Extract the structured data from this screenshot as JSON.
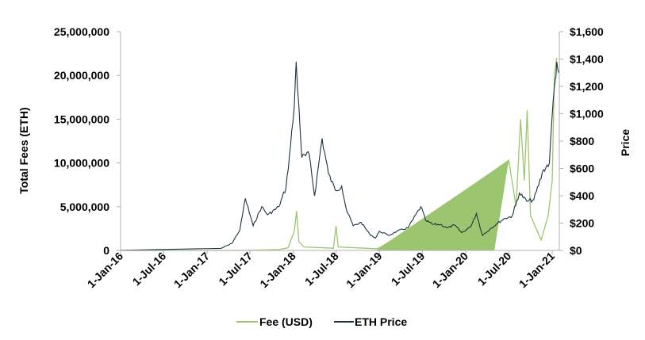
{
  "chart_data": {
    "type": "line",
    "title": "",
    "xlabel": "",
    "ylabel_left": "Total Fees (ETH)",
    "ylabel_right": "Price",
    "x_ticks": [
      "1-Jan-16",
      "1-Jul-16",
      "1-Jan-17",
      "1-Jul-17",
      "1-Jan-18",
      "1-Jul-18",
      "1-Jan-19",
      "1-Jul-19",
      "1-Jan-20",
      "1-Jul-20",
      "1-Jan-21"
    ],
    "y_left_ticks": [
      "0",
      "5,000,000",
      "10,000,000",
      "15,000,000",
      "20,000,000",
      "25,000,000"
    ],
    "y_left_range": [
      0,
      25000000
    ],
    "y_right_ticks": [
      "$0",
      "$200",
      "$400",
      "$600",
      "$800",
      "$1,000",
      "$1,200",
      "$1,400",
      "$1,600"
    ],
    "y_right_range": [
      0,
      1600
    ],
    "legend_position": "bottom",
    "grid": false,
    "series": [
      {
        "name": "Fee (USD)",
        "axis": "left",
        "color": "#9bc66f",
        "points": [
          [
            "2016-01-01",
            0
          ],
          [
            "2017-06-01",
            0
          ],
          [
            "2017-11-01",
            100000
          ],
          [
            "2017-12-10",
            300000
          ],
          [
            "2018-01-05",
            2200000
          ],
          [
            "2018-01-15",
            4500000
          ],
          [
            "2018-01-25",
            1000000
          ],
          [
            "2018-02-15",
            400000
          ],
          [
            "2018-06-20",
            250000
          ],
          [
            "2018-07-01",
            2800000
          ],
          [
            "2018-07-10",
            400000
          ],
          [
            "2018-12-15",
            200000
          ],
          [
            "2019-01-01",
            300000
          ],
          [
            "2019-04-01",
            1800000
          ],
          [
            "2019-07-01",
            3400000
          ],
          [
            "2019-10-01",
            5200000
          ],
          [
            "2020-01-01",
            6900000
          ],
          [
            "2020-04-01",
            8600000
          ],
          [
            "2020-07-01",
            10300000
          ],
          [
            "2020-08-01",
            5000000
          ],
          [
            "2020-08-20",
            15000000
          ],
          [
            "2020-09-05",
            8000000
          ],
          [
            "2020-09-17",
            16000000
          ],
          [
            "2020-10-01",
            4000000
          ],
          [
            "2020-11-15",
            1200000
          ],
          [
            "2020-12-15",
            4000000
          ],
          [
            "2021-01-01",
            8000000
          ],
          [
            "2021-01-10",
            20000000
          ],
          [
            "2021-01-20",
            22000000
          ]
        ]
      },
      {
        "name": "ETH Price",
        "axis": "right",
        "color": "#1c3341",
        "points": [
          [
            "2016-01-01",
            1
          ],
          [
            "2017-03-01",
            15
          ],
          [
            "2017-04-15",
            50
          ],
          [
            "2017-05-20",
            150
          ],
          [
            "2017-06-12",
            380
          ],
          [
            "2017-07-15",
            180
          ],
          [
            "2017-08-20",
            320
          ],
          [
            "2017-09-15",
            260
          ],
          [
            "2017-11-01",
            320
          ],
          [
            "2017-12-01",
            460
          ],
          [
            "2017-12-20",
            760
          ],
          [
            "2018-01-05",
            1050
          ],
          [
            "2018-01-13",
            1380
          ],
          [
            "2018-01-25",
            1050
          ],
          [
            "2018-02-06",
            680
          ],
          [
            "2018-03-10",
            700
          ],
          [
            "2018-04-01",
            400
          ],
          [
            "2018-05-03",
            820
          ],
          [
            "2018-05-30",
            560
          ],
          [
            "2018-06-28",
            440
          ],
          [
            "2018-07-25",
            470
          ],
          [
            "2018-08-15",
            290
          ],
          [
            "2018-09-12",
            180
          ],
          [
            "2018-10-15",
            205
          ],
          [
            "2018-11-20",
            120
          ],
          [
            "2018-12-15",
            90
          ],
          [
            "2019-01-01",
            140
          ],
          [
            "2019-02-10",
            110
          ],
          [
            "2019-03-15",
            140
          ],
          [
            "2019-05-01",
            165
          ],
          [
            "2019-06-25",
            320
          ],
          [
            "2019-07-15",
            220
          ],
          [
            "2019-08-15",
            190
          ],
          [
            "2019-09-15",
            190
          ],
          [
            "2019-10-15",
            165
          ],
          [
            "2019-11-15",
            185
          ],
          [
            "2019-12-15",
            130
          ],
          [
            "2020-01-20",
            170
          ],
          [
            "2020-02-15",
            270
          ],
          [
            "2020-03-12",
            110
          ],
          [
            "2020-04-15",
            160
          ],
          [
            "2020-05-15",
            200
          ],
          [
            "2020-06-15",
            235
          ],
          [
            "2020-07-15",
            250
          ],
          [
            "2020-08-15",
            420
          ],
          [
            "2020-09-15",
            360
          ],
          [
            "2020-10-15",
            370
          ],
          [
            "2020-11-25",
            590
          ],
          [
            "2020-12-20",
            640
          ],
          [
            "2021-01-05",
            1100
          ],
          [
            "2021-01-14",
            1250
          ],
          [
            "2021-01-20",
            1380
          ],
          [
            "2021-01-28",
            1300
          ]
        ]
      }
    ]
  }
}
